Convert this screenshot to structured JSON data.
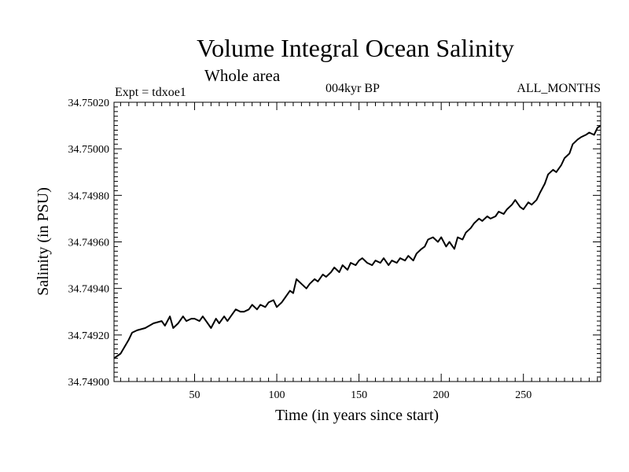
{
  "chart_data": {
    "type": "line",
    "title": "Volume Integral Ocean Salinity",
    "subtitle": "Whole area",
    "experiment": "Expt = tdxoe1",
    "period": "004kyr BP",
    "months": "ALL_MONTHS",
    "xlabel": "Time (in years since start)",
    "ylabel": "Salinity (in PSU)",
    "xlim": [
      1,
      297
    ],
    "ylim": [
      34.749,
      34.7502
    ],
    "xticks": [
      50,
      100,
      150,
      200,
      250
    ],
    "yticks": [
      "34.74900",
      "34.74920",
      "34.74940",
      "34.74960",
      "34.74980",
      "34.75000",
      "34.75020"
    ],
    "grid": false,
    "series": [
      {
        "name": "Salinity",
        "color": "#000000",
        "x": [
          1,
          5,
          10,
          12,
          15,
          20,
          25,
          30,
          32,
          35,
          37,
          40,
          43,
          45,
          48,
          50,
          53,
          55,
          58,
          60,
          63,
          65,
          68,
          70,
          73,
          75,
          78,
          80,
          83,
          85,
          88,
          90,
          93,
          95,
          98,
          100,
          103,
          105,
          108,
          110,
          112,
          115,
          118,
          120,
          123,
          125,
          128,
          130,
          133,
          135,
          138,
          140,
          143,
          145,
          148,
          150,
          152,
          155,
          158,
          160,
          163,
          165,
          168,
          170,
          173,
          175,
          178,
          180,
          183,
          185,
          188,
          190,
          192,
          195,
          198,
          200,
          203,
          205,
          208,
          210,
          213,
          215,
          218,
          220,
          223,
          225,
          228,
          230,
          233,
          235,
          238,
          240,
          243,
          245,
          248,
          250,
          253,
          255,
          258,
          260,
          263,
          265,
          268,
          270,
          273,
          275,
          278,
          280,
          283,
          285,
          288,
          290,
          293,
          295,
          297
        ],
        "y": [
          34.7491,
          34.74912,
          34.74918,
          34.74921,
          34.74922,
          34.74923,
          34.74925,
          34.74926,
          34.74924,
          34.74928,
          34.74923,
          34.74925,
          34.74928,
          34.74926,
          34.74927,
          34.74927,
          34.74926,
          34.74928,
          34.74925,
          34.74923,
          34.74927,
          34.74925,
          34.74928,
          34.74926,
          34.74929,
          34.74931,
          34.7493,
          34.7493,
          34.74931,
          34.74933,
          34.74931,
          34.74933,
          34.74932,
          34.74934,
          34.74935,
          34.74932,
          34.74934,
          34.74936,
          34.74939,
          34.74938,
          34.74944,
          34.74942,
          34.7494,
          34.74942,
          34.74944,
          34.74943,
          34.74946,
          34.74945,
          34.74947,
          34.74949,
          34.74947,
          34.7495,
          34.74948,
          34.74951,
          34.7495,
          34.74952,
          34.74953,
          34.74951,
          34.7495,
          34.74952,
          34.74951,
          34.74953,
          34.7495,
          34.74952,
          34.74951,
          34.74953,
          34.74952,
          34.74954,
          34.74952,
          34.74955,
          34.74957,
          34.74958,
          34.74961,
          34.74962,
          34.7496,
          34.74962,
          34.74958,
          34.7496,
          34.74957,
          34.74962,
          34.74961,
          34.74964,
          34.74966,
          34.74968,
          34.7497,
          34.74969,
          34.74971,
          34.7497,
          34.74971,
          34.74973,
          34.74972,
          34.74974,
          34.74976,
          34.74978,
          34.74975,
          34.74974,
          34.74977,
          34.74976,
          34.74978,
          34.74981,
          34.74985,
          34.74989,
          34.74991,
          34.7499,
          34.74993,
          34.74996,
          34.74998,
          34.75002,
          34.75004,
          34.75005,
          34.75006,
          34.75007,
          34.75006,
          34.75009,
          34.7501
        ]
      }
    ]
  }
}
